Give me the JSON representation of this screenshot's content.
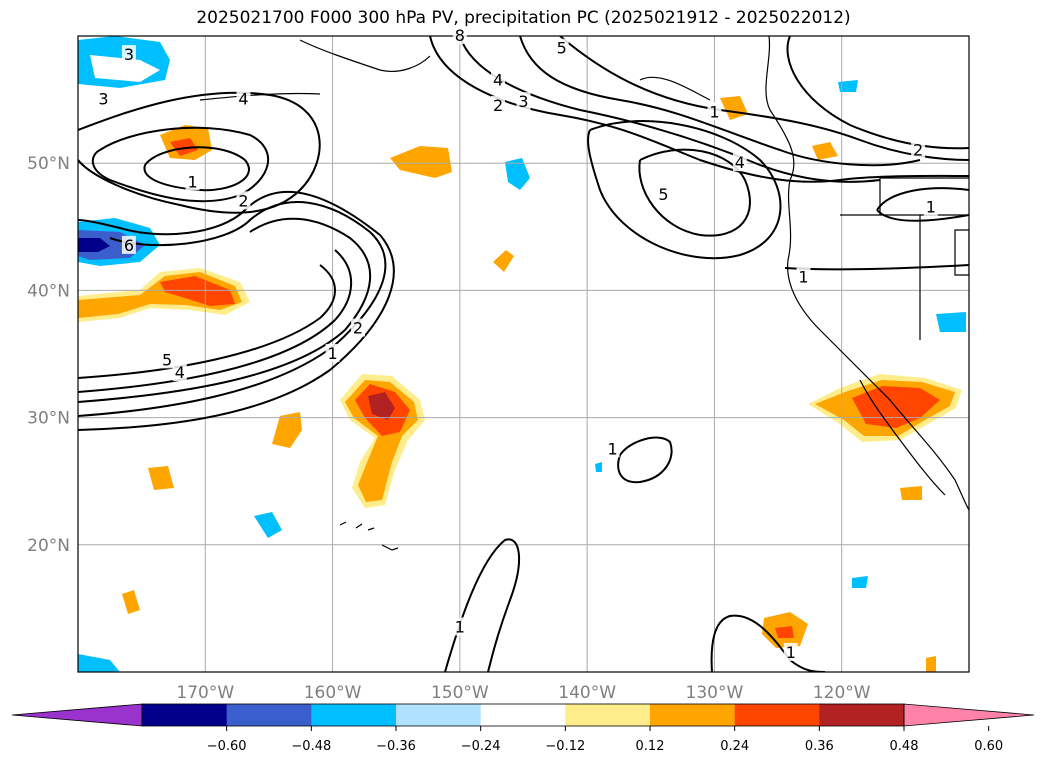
{
  "title": "2025021700 F000 300 hPa PV, precipitation PC (2025021912 - 2025022012)",
  "map": {
    "lon_range": [
      -180,
      -110
    ],
    "lat_range": [
      10,
      60
    ],
    "lat_gridlines": [
      20,
      30,
      40,
      50
    ],
    "lon_gridlines": [
      -170,
      -160,
      -150,
      -140,
      -130,
      -120
    ],
    "lat_tick_labels": [
      "20°N",
      "30°N",
      "40°N",
      "50°N"
    ],
    "lon_tick_labels": [
      "170°W",
      "160°W",
      "150°W",
      "140°W",
      "130°W",
      "120°W"
    ],
    "grid": true
  },
  "pv_contour_labels": [
    {
      "text": "3",
      "lon": -176,
      "lat": 58.5
    },
    {
      "text": "3",
      "lon": -178,
      "lat": 55.0
    },
    {
      "text": "4",
      "lon": -167,
      "lat": 55.0
    },
    {
      "text": "1",
      "lon": -171,
      "lat": 48.5
    },
    {
      "text": "2",
      "lon": -167,
      "lat": 47.0
    },
    {
      "text": "6",
      "lon": -176,
      "lat": 43.5
    },
    {
      "text": "2",
      "lon": -158,
      "lat": 37.0
    },
    {
      "text": "5",
      "lon": -173,
      "lat": 34.5
    },
    {
      "text": "4",
      "lon": -172,
      "lat": 33.5
    },
    {
      "text": "1",
      "lon": -160,
      "lat": 35.0
    },
    {
      "text": "4",
      "lon": -147,
      "lat": 56.5
    },
    {
      "text": "2",
      "lon": -147,
      "lat": 54.5
    },
    {
      "text": "3",
      "lon": -145,
      "lat": 54.8
    },
    {
      "text": "5",
      "lon": -142,
      "lat": 59.0
    },
    {
      "text": "5",
      "lon": -134,
      "lat": 47.5
    },
    {
      "text": "4",
      "lon": -128,
      "lat": 50.0
    },
    {
      "text": "1",
      "lon": -130,
      "lat": 54.0
    },
    {
      "text": "2",
      "lon": -114,
      "lat": 51.0
    },
    {
      "text": "1",
      "lon": -113,
      "lat": 46.5
    },
    {
      "text": "1",
      "lon": -123,
      "lat": 41.0
    },
    {
      "text": "1",
      "lon": -138,
      "lat": 27.5
    },
    {
      "text": "1",
      "lon": -150,
      "lat": 13.5
    },
    {
      "text": "1",
      "lon": -124,
      "lat": 11.5
    },
    {
      "text": "8",
      "lon": -150,
      "lat": 60.0
    }
  ],
  "colorbar": {
    "ticks": [
      "−0.60",
      "−0.48",
      "−0.36",
      "−0.24",
      "−0.12",
      "0.12",
      "0.24",
      "0.36",
      "0.48",
      "0.60"
    ],
    "colors": [
      "#9a32cd",
      "#00008b",
      "#3a5fcd",
      "#00bfff",
      "#b0e2ff",
      "#ffffff",
      "#ffec8b",
      "#ffa500",
      "#ff4500",
      "#b22222",
      "#ff83a8"
    ]
  }
}
